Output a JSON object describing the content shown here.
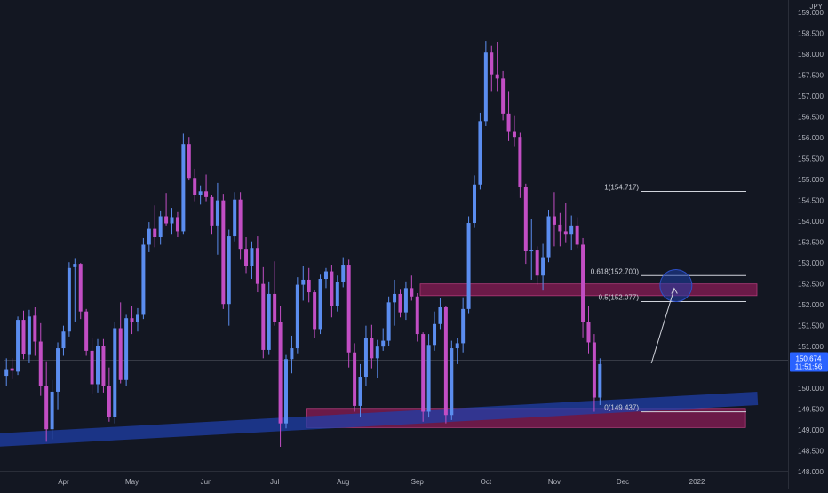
{
  "chart_data": {
    "type": "candlestick",
    "currency": "JPY",
    "price_axis": {
      "range": [
        147.6,
        159.3
      ],
      "ticks": [
        "148.000",
        "148.500",
        "149.000",
        "149.500",
        "150.000",
        "150.500",
        "151.000",
        "151.500",
        "152.000",
        "152.500",
        "153.000",
        "153.500",
        "154.000",
        "154.500",
        "155.000",
        "155.500",
        "156.000",
        "156.500",
        "157.000",
        "157.500",
        "158.000",
        "158.500",
        "159.000"
      ]
    },
    "time_axis": {
      "labels": [
        {
          "text": "Apr",
          "index": 10
        },
        {
          "text": "May",
          "index": 22
        },
        {
          "text": "Jun",
          "index": 35
        },
        {
          "text": "Jul",
          "index": 47
        },
        {
          "text": "Aug",
          "index": 59
        },
        {
          "text": "Sep",
          "index": 72
        },
        {
          "text": "Oct",
          "index": 84
        },
        {
          "text": "Nov",
          "index": 96
        },
        {
          "text": "Dec",
          "index": 108
        },
        {
          "text": "2022",
          "index": 121
        }
      ],
      "total_slots": 132
    },
    "candles": [
      [
        150.3,
        150.72,
        150.06,
        150.46
      ],
      [
        150.48,
        150.72,
        150.22,
        150.42
      ],
      [
        150.4,
        151.72,
        150.32,
        151.64
      ],
      [
        151.64,
        151.86,
        150.7,
        150.82
      ],
      [
        150.8,
        151.88,
        150.6,
        151.72
      ],
      [
        151.74,
        151.94,
        150.78,
        151.12
      ],
      [
        151.12,
        151.56,
        149.82,
        150.05
      ],
      [
        150.05,
        150.65,
        148.72,
        149.02
      ],
      [
        149.02,
        150.2,
        148.78,
        149.92
      ],
      [
        149.92,
        151.1,
        149.5,
        150.96
      ],
      [
        150.96,
        151.5,
        150.78,
        151.36
      ],
      [
        151.36,
        153.02,
        151.24,
        152.88
      ],
      [
        152.9,
        153.1,
        151.6,
        152.98
      ],
      [
        152.98,
        153.0,
        151.66,
        151.84
      ],
      [
        151.84,
        151.9,
        150.78,
        150.9
      ],
      [
        150.9,
        151.2,
        149.88,
        150.1
      ],
      [
        150.1,
        151.18,
        149.9,
        151.02
      ],
      [
        151.02,
        151.18,
        149.9,
        150.06
      ],
      [
        150.06,
        150.5,
        149.2,
        149.32
      ],
      [
        149.32,
        151.6,
        149.16,
        151.44
      ],
      [
        151.44,
        152.06,
        150.12,
        150.2
      ],
      [
        150.2,
        151.76,
        150.06,
        151.68
      ],
      [
        151.68,
        151.98,
        151.3,
        151.58
      ],
      [
        151.58,
        151.92,
        151.36,
        151.76
      ],
      [
        151.76,
        153.6,
        151.66,
        153.44
      ],
      [
        153.44,
        153.98,
        153.26,
        153.82
      ],
      [
        153.82,
        154.38,
        153.38,
        153.62
      ],
      [
        153.62,
        154.26,
        153.44,
        154.12
      ],
      [
        154.12,
        154.68,
        153.9,
        153.95
      ],
      [
        153.95,
        154.32,
        153.7,
        154.1
      ],
      [
        154.1,
        154.22,
        153.62,
        153.76
      ],
      [
        153.76,
        156.1,
        153.7,
        155.85
      ],
      [
        155.85,
        156.02,
        154.98,
        155.04
      ],
      [
        155.04,
        155.26,
        154.48,
        154.64
      ],
      [
        154.64,
        154.86,
        154.4,
        154.72
      ],
      [
        154.72,
        155.12,
        154.48,
        154.58
      ],
      [
        154.58,
        154.64,
        153.7,
        153.9
      ],
      [
        153.9,
        154.92,
        153.2,
        154.5
      ],
      [
        154.5,
        154.66,
        151.9,
        152.02
      ],
      [
        152.02,
        153.8,
        151.5,
        153.64
      ],
      [
        153.64,
        154.7,
        153.52,
        154.52
      ],
      [
        154.52,
        154.7,
        153.08,
        153.34
      ],
      [
        153.34,
        153.62,
        152.76,
        152.92
      ],
      [
        152.92,
        153.52,
        152.62,
        153.36
      ],
      [
        153.36,
        153.64,
        152.3,
        152.5
      ],
      [
        152.5,
        152.9,
        150.72,
        150.92
      ],
      [
        150.92,
        152.56,
        150.8,
        152.26
      ],
      [
        152.26,
        153.04,
        151.5,
        151.58
      ],
      [
        151.58,
        151.96,
        148.6,
        149.16
      ],
      [
        149.16,
        150.8,
        149.04,
        150.7
      ],
      [
        150.7,
        151.26,
        150.36,
        150.96
      ],
      [
        150.96,
        152.66,
        150.84,
        152.48
      ],
      [
        152.48,
        152.94,
        152.1,
        152.6
      ],
      [
        152.6,
        152.88,
        152.06,
        152.3
      ],
      [
        152.3,
        152.36,
        151.2,
        151.42
      ],
      [
        151.42,
        152.72,
        151.3,
        152.62
      ],
      [
        152.62,
        152.88,
        152.4,
        152.8
      ],
      [
        152.8,
        152.96,
        151.7,
        151.98
      ],
      [
        151.98,
        152.7,
        151.84,
        152.54
      ],
      [
        152.54,
        153.14,
        152.42,
        152.96
      ],
      [
        152.96,
        153.08,
        150.5,
        150.86
      ],
      [
        150.86,
        151.08,
        149.44,
        149.58
      ],
      [
        149.58,
        150.58,
        149.32,
        150.28
      ],
      [
        150.28,
        151.5,
        150.06,
        151.2
      ],
      [
        151.2,
        151.52,
        150.48,
        150.72
      ],
      [
        150.72,
        151.16,
        150.24,
        151.0
      ],
      [
        151.0,
        151.44,
        150.9,
        151.14
      ],
      [
        151.14,
        152.2,
        151.02,
        152.06
      ],
      [
        152.06,
        152.6,
        151.5,
        152.26
      ],
      [
        152.26,
        152.38,
        151.7,
        151.82
      ],
      [
        151.82,
        152.56,
        151.64,
        152.4
      ],
      [
        152.4,
        152.7,
        152.1,
        152.2
      ],
      [
        152.2,
        152.28,
        151.12,
        151.3
      ],
      [
        151.3,
        151.34,
        149.2,
        149.44
      ],
      [
        149.44,
        151.3,
        149.3,
        151.04
      ],
      [
        151.04,
        151.84,
        150.9,
        151.54
      ],
      [
        151.54,
        152.16,
        151.42,
        151.94
      ],
      [
        151.94,
        151.98,
        149.16,
        149.36
      ],
      [
        149.36,
        151.14,
        149.24,
        150.96
      ],
      [
        150.96,
        151.2,
        150.58,
        151.08
      ],
      [
        151.08,
        152.18,
        150.86,
        151.9
      ],
      [
        151.9,
        154.12,
        151.8,
        153.96
      ],
      [
        153.96,
        155.1,
        153.84,
        154.88
      ],
      [
        154.88,
        156.6,
        154.76,
        156.4
      ],
      [
        156.4,
        158.32,
        156.28,
        158.04
      ],
      [
        158.04,
        158.2,
        157.1,
        157.52
      ],
      [
        157.52,
        158.3,
        157.1,
        157.42
      ],
      [
        157.42,
        157.6,
        156.42,
        156.58
      ],
      [
        156.58,
        157.1,
        155.92,
        156.14
      ],
      [
        156.14,
        156.52,
        155.8,
        156.02
      ],
      [
        156.02,
        156.12,
        154.56,
        154.82
      ],
      [
        154.82,
        154.9,
        152.98,
        153.28
      ],
      [
        153.28,
        154.06,
        152.6,
        153.3
      ],
      [
        153.3,
        153.4,
        152.48,
        152.7
      ],
      [
        152.7,
        153.46,
        152.34,
        153.14
      ],
      [
        153.14,
        154.28,
        153.02,
        154.12
      ],
      [
        154.12,
        154.7,
        153.4,
        153.92
      ],
      [
        153.92,
        154.2,
        153.4,
        153.76
      ],
      [
        153.76,
        154.44,
        153.5,
        153.7
      ],
      [
        153.7,
        154.14,
        153.3,
        153.9
      ],
      [
        153.9,
        154.1,
        153.36,
        153.44
      ],
      [
        153.44,
        153.6,
        151.22,
        151.58
      ],
      [
        151.58,
        151.98,
        150.84,
        151.1
      ],
      [
        151.1,
        151.3,
        149.44,
        149.78
      ],
      [
        149.78,
        150.72,
        149.6,
        150.58
      ]
    ],
    "fibonacci": [
      {
        "level": "1",
        "price": 154.717,
        "label": "1(154.717)"
      },
      {
        "level": "0.618",
        "price": 152.7,
        "label": "0.618(152.700)"
      },
      {
        "level": "0.5",
        "price": 152.077,
        "label": "0.5(152.077)"
      },
      {
        "level": "0",
        "price": 149.437,
        "label": "0(149.437)"
      }
    ],
    "zones": [
      {
        "name": "resistance-zone",
        "top": 152.5,
        "bottom": 152.22,
        "from_index": 73,
        "to_index": 131,
        "color": "#7b1b4f"
      },
      {
        "name": "support-zone",
        "top": 149.52,
        "bottom": 149.06,
        "from_index": 53,
        "to_index": 129,
        "color": "#7b1b4f"
      }
    ],
    "trendline": {
      "start": {
        "index": 0,
        "price": 148.76
      },
      "end": {
        "index": 131,
        "price": 149.76
      },
      "color": "#1f3fa8"
    },
    "projection": {
      "from": {
        "index": 113,
        "price": 150.6
      },
      "to": {
        "index": 117,
        "price": 152.46
      }
    },
    "last_price": {
      "value": "150.674",
      "countdown": "11:51:56",
      "price": 150.674
    },
    "colors": {
      "background": "#131722",
      "up": "#5b8def",
      "down": "#c24ec4",
      "text": "#b2b5be",
      "price_badge": "#2962ff"
    }
  }
}
